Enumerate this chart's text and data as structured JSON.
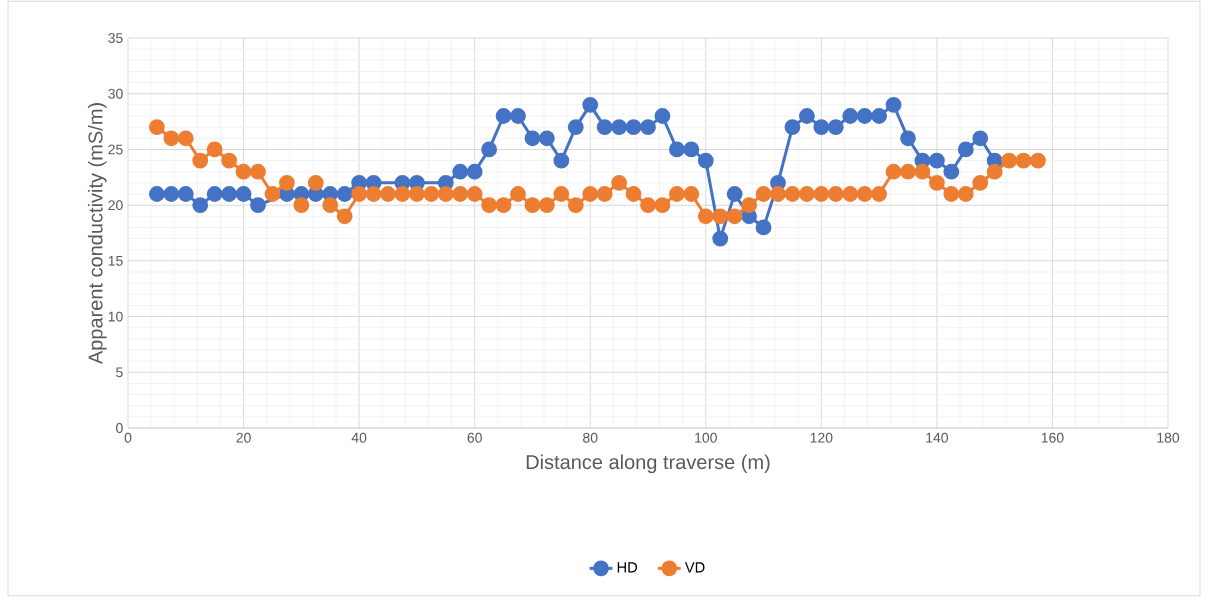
{
  "chart_data": {
    "type": "line",
    "xlabel": "Distance along traverse (m)",
    "ylabel": "Apparent conductivity (mS/m)",
    "xlim": [
      0,
      180
    ],
    "xticks": [
      0,
      20,
      40,
      60,
      80,
      100,
      120,
      140,
      160,
      180
    ],
    "ylim": [
      0,
      35
    ],
    "yticks": [
      0,
      5,
      10,
      15,
      20,
      25,
      30,
      35
    ],
    "grid": true,
    "legend": "bottom",
    "marker": "circle",
    "line_style": "solid",
    "series": [
      {
        "name": "HD",
        "color": "#4472c4",
        "x": [
          5,
          7.5,
          10,
          12.5,
          15,
          17.5,
          20,
          22.5,
          25,
          27.5,
          30,
          32.5,
          35,
          37.5,
          40,
          42.5,
          45,
          47.5,
          50,
          52.5,
          55,
          57.5,
          60,
          62.5,
          65,
          67.5,
          70,
          72.5,
          75,
          77.5,
          80,
          82.5,
          85,
          87.5,
          90,
          92.5,
          95,
          97.5,
          100,
          102.5,
          105,
          107.5,
          110,
          112.5,
          115,
          117.5,
          120,
          122.5,
          125,
          127.5,
          130,
          132.5,
          135,
          137.5,
          140,
          142.5,
          145,
          147.5,
          150
        ],
        "values": [
          21,
          21,
          21,
          20,
          21,
          21,
          21,
          20,
          null,
          21,
          21,
          21,
          21,
          21,
          22,
          22,
          null,
          22,
          22,
          null,
          22,
          23,
          23,
          25,
          28,
          28,
          26,
          26,
          24,
          27,
          29,
          27,
          27,
          27,
          27,
          28,
          25,
          25,
          24,
          17,
          21,
          19,
          18,
          22,
          27,
          28,
          27,
          27,
          28,
          28,
          28,
          29,
          26,
          24,
          24,
          23,
          25,
          26,
          24
        ]
      },
      {
        "name": "VD",
        "color": "#ed7d31",
        "x": [
          5,
          7.5,
          10,
          12.5,
          15,
          17.5,
          20,
          22.5,
          25,
          27.5,
          30,
          32.5,
          35,
          37.5,
          40,
          42.5,
          45,
          47.5,
          50,
          52.5,
          55,
          57.5,
          60,
          62.5,
          65,
          67.5,
          70,
          72.5,
          75,
          77.5,
          80,
          82.5,
          85,
          87.5,
          90,
          92.5,
          95,
          97.5,
          100,
          102.5,
          105,
          107.5,
          110,
          112.5,
          115,
          117.5,
          120,
          122.5,
          125,
          127.5,
          130,
          132.5,
          135,
          137.5,
          140,
          142.5,
          145,
          147.5,
          150,
          152.5,
          155,
          157.5
        ],
        "values": [
          27,
          26,
          26,
          24,
          25,
          24,
          23,
          23,
          21,
          22,
          20,
          22,
          20,
          19,
          21,
          21,
          21,
          21,
          21,
          21,
          21,
          21,
          21,
          20,
          20,
          21,
          20,
          20,
          21,
          20,
          21,
          21,
          22,
          21,
          20,
          20,
          21,
          21,
          19,
          19,
          19,
          20,
          21,
          21,
          21,
          21,
          21,
          21,
          21,
          21,
          21,
          23,
          23,
          23,
          22,
          21,
          21,
          22,
          23,
          24,
          24,
          24
        ]
      }
    ]
  }
}
